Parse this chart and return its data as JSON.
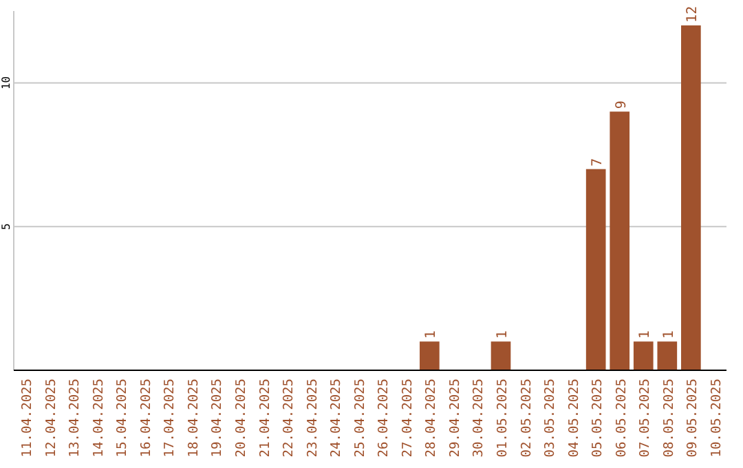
{
  "chart_data": {
    "type": "bar",
    "categories": [
      "11.04.2025",
      "12.04.2025",
      "13.04.2025",
      "14.04.2025",
      "15.04.2025",
      "16.04.2025",
      "17.04.2025",
      "18.04.2025",
      "19.04.2025",
      "20.04.2025",
      "21.04.2025",
      "22.04.2025",
      "23.04.2025",
      "24.04.2025",
      "25.04.2025",
      "26.04.2025",
      "27.04.2025",
      "28.04.2025",
      "29.04.2025",
      "30.04.2025",
      "01.05.2025",
      "02.05.2025",
      "03.05.2025",
      "04.05.2025",
      "05.05.2025",
      "06.05.2025",
      "07.05.2025",
      "08.05.2025",
      "09.05.2025",
      "10.05.2025"
    ],
    "values": [
      0,
      0,
      0,
      0,
      0,
      0,
      0,
      0,
      0,
      0,
      0,
      0,
      0,
      0,
      0,
      0,
      0,
      1,
      0,
      0,
      1,
      0,
      0,
      0,
      7,
      9,
      1,
      1,
      12,
      0
    ],
    "value_labels": [
      null,
      null,
      null,
      null,
      null,
      null,
      null,
      null,
      null,
      null,
      null,
      null,
      null,
      null,
      null,
      null,
      null,
      "1",
      null,
      null,
      "1",
      null,
      null,
      null,
      "7",
      "9",
      "1",
      "1",
      "12",
      null
    ],
    "color": "#a0522d",
    "ylim": [
      0,
      12.5
    ],
    "yticks": [
      5,
      10
    ],
    "grid": "y"
  }
}
